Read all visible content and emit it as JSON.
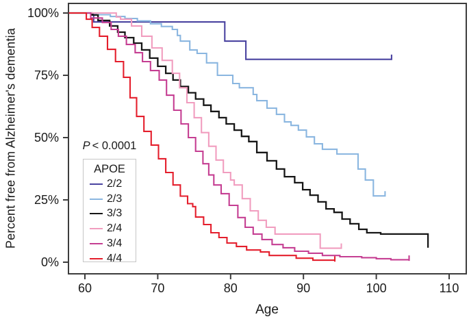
{
  "chart_data": {
    "type": "line",
    "subtype": "kaplan-meier-step",
    "title": "",
    "xlabel": "Age",
    "ylabel": "Percent free from Alzheimer's dementia",
    "p_label": {
      "symbol": "P",
      "value": "< 0.0001"
    },
    "legend_title": "APOE",
    "legend_position": "lower-left",
    "grid": false,
    "x_ticks": [
      60,
      70,
      80,
      90,
      100,
      110
    ],
    "y_ticks": [
      {
        "label": "100%",
        "value": 100
      },
      {
        "label": "75%",
        "value": 75
      },
      {
        "label": "50%",
        "value": 50
      },
      {
        "label": "25%",
        "value": 25
      },
      {
        "label": "0%",
        "value": 0
      }
    ],
    "xlim": [
      57.6,
      112.4
    ],
    "ylim": [
      -5,
      104
    ],
    "series": [
      {
        "name": "2/2",
        "color": "#4a43a0",
        "censor_tick_at_end": true,
        "points": [
          [
            57.8,
            100
          ],
          [
            61.2,
            96.4
          ],
          [
            79.2,
            88.7
          ],
          [
            82.1,
            81.4
          ],
          [
            102.1,
            81.4
          ]
        ]
      },
      {
        "name": "2/3",
        "color": "#8ab6e0",
        "censor_tick_at_end": true,
        "points": [
          [
            57.8,
            100
          ],
          [
            61.5,
            99.3
          ],
          [
            63.5,
            98.6
          ],
          [
            65.5,
            97.8
          ],
          [
            67.2,
            96.8
          ],
          [
            69.0,
            95.7
          ],
          [
            70.5,
            94.6
          ],
          [
            72.0,
            93.4
          ],
          [
            72.7,
            91.0
          ],
          [
            73.1,
            88.7
          ],
          [
            74.4,
            85.2
          ],
          [
            75.4,
            83.8
          ],
          [
            76.7,
            80.0
          ],
          [
            78.2,
            75.0
          ],
          [
            80.3,
            71.7
          ],
          [
            81.2,
            70.0
          ],
          [
            83.1,
            67.3
          ],
          [
            83.6,
            64.8
          ],
          [
            85.0,
            61.8
          ],
          [
            86.3,
            59.3
          ],
          [
            87.4,
            56.3
          ],
          [
            88.3,
            54.9
          ],
          [
            89.3,
            53.0
          ],
          [
            90.4,
            50.3
          ],
          [
            91.5,
            47.5
          ],
          [
            92.6,
            45.3
          ],
          [
            94.6,
            43.4
          ],
          [
            97.5,
            37.4
          ],
          [
            98.5,
            33.0
          ],
          [
            99.6,
            26.6
          ],
          [
            101.2,
            26.6
          ]
        ]
      },
      {
        "name": "3/3",
        "color": "#161616",
        "censor_tick_at_end": false,
        "points": [
          [
            57.8,
            100
          ],
          [
            61.0,
            99.2
          ],
          [
            61.8,
            97.0
          ],
          [
            63.4,
            94.8
          ],
          [
            64.5,
            92.3
          ],
          [
            65.5,
            90.1
          ],
          [
            66.7,
            87.9
          ],
          [
            67.8,
            85.2
          ],
          [
            68.9,
            81.9
          ],
          [
            70.0,
            78.6
          ],
          [
            71.1,
            75.8
          ],
          [
            72.1,
            73.1
          ],
          [
            73.1,
            70.5
          ],
          [
            74.2,
            68.0
          ],
          [
            75.2,
            65.5
          ],
          [
            76.3,
            63.0
          ],
          [
            77.3,
            60.5
          ],
          [
            78.4,
            58.0
          ],
          [
            79.4,
            55.5
          ],
          [
            80.5,
            53.0
          ],
          [
            81.5,
            50.5
          ],
          [
            82.5,
            48.4
          ],
          [
            83.6,
            44.0
          ],
          [
            85.0,
            40.7
          ],
          [
            86.3,
            37.4
          ],
          [
            87.4,
            34.3
          ],
          [
            88.8,
            31.9
          ],
          [
            89.9,
            29.1
          ],
          [
            90.9,
            26.9
          ],
          [
            92.0,
            24.2
          ],
          [
            93.1,
            21.4
          ],
          [
            94.2,
            20.0
          ],
          [
            95.3,
            17.3
          ],
          [
            96.4,
            15.4
          ],
          [
            97.6,
            13.2
          ],
          [
            98.7,
            11.8
          ],
          [
            100.6,
            11.3
          ],
          [
            107.1,
            5.8
          ]
        ]
      },
      {
        "name": "2/4",
        "color": "#f19dbf",
        "censor_tick_at_end": true,
        "points": [
          [
            57.8,
            100
          ],
          [
            64.3,
            98.4
          ],
          [
            64.9,
            97.5
          ],
          [
            66.4,
            94.8
          ],
          [
            67.8,
            90.7
          ],
          [
            69.2,
            86.0
          ],
          [
            70.6,
            81.0
          ],
          [
            72.0,
            75.8
          ],
          [
            73.0,
            70.0
          ],
          [
            74.0,
            64.0
          ],
          [
            75.0,
            58.0
          ],
          [
            76.0,
            52.0
          ],
          [
            77.0,
            46.5
          ],
          [
            78.0,
            41.0
          ],
          [
            79.0,
            36.0
          ],
          [
            80.0,
            33.0
          ],
          [
            80.5,
            31.0
          ],
          [
            81.6,
            25.5
          ],
          [
            82.7,
            20.6
          ],
          [
            83.8,
            16.8
          ],
          [
            84.9,
            14.0
          ],
          [
            86.1,
            11.3
          ],
          [
            92.3,
            5.6
          ],
          [
            95.2,
            5.6
          ]
        ]
      },
      {
        "name": "3/4",
        "color": "#c53e92",
        "censor_tick_at_end": true,
        "points": [
          [
            57.8,
            100
          ],
          [
            60.8,
            98.0
          ],
          [
            62.4,
            96.2
          ],
          [
            63.6,
            93.4
          ],
          [
            64.6,
            90.7
          ],
          [
            65.7,
            87.4
          ],
          [
            66.9,
            84.1
          ],
          [
            67.9,
            80.5
          ],
          [
            69.0,
            76.9
          ],
          [
            70.2,
            73.1
          ],
          [
            71.2,
            67.0
          ],
          [
            72.2,
            61.0
          ],
          [
            73.2,
            55.5
          ],
          [
            74.2,
            50.0
          ],
          [
            75.2,
            44.5
          ],
          [
            76.2,
            39.5
          ],
          [
            77.0,
            35.0
          ],
          [
            77.7,
            31.0
          ],
          [
            78.7,
            27.5
          ],
          [
            79.8,
            22.8
          ],
          [
            81.0,
            17.9
          ],
          [
            82.0,
            14.0
          ],
          [
            83.1,
            11.3
          ],
          [
            84.3,
            9.1
          ],
          [
            85.7,
            7.1
          ],
          [
            87.2,
            5.8
          ],
          [
            88.8,
            4.4
          ],
          [
            90.7,
            3.6
          ],
          [
            92.6,
            2.7
          ],
          [
            95.0,
            2.2
          ],
          [
            98.0,
            1.8
          ],
          [
            100.0,
            1.4
          ],
          [
            102.0,
            1.0
          ],
          [
            104.5,
            0.8
          ]
        ]
      },
      {
        "name": "4/4",
        "color": "#e41e2c",
        "censor_tick_at_end": true,
        "points": [
          [
            57.8,
            100
          ],
          [
            60.2,
            97.5
          ],
          [
            61.0,
            94.2
          ],
          [
            62.0,
            90.7
          ],
          [
            63.1,
            85.4
          ],
          [
            64.2,
            80.5
          ],
          [
            65.3,
            74.2
          ],
          [
            66.2,
            66.0
          ],
          [
            67.1,
            58.5
          ],
          [
            68.1,
            52.5
          ],
          [
            69.1,
            47.0
          ],
          [
            70.1,
            41.5
          ],
          [
            71.1,
            36.0
          ],
          [
            72.1,
            31.0
          ],
          [
            73.1,
            26.5
          ],
          [
            74.1,
            23.5
          ],
          [
            74.8,
            22.3
          ],
          [
            75.2,
            18.1
          ],
          [
            76.3,
            15.1
          ],
          [
            77.3,
            11.8
          ],
          [
            78.4,
            9.9
          ],
          [
            79.5,
            7.7
          ],
          [
            80.8,
            6.3
          ],
          [
            82.2,
            4.9
          ],
          [
            84.1,
            4.1
          ],
          [
            85.3,
            2.7
          ],
          [
            89.0,
            1.6
          ],
          [
            91.3,
            0.8
          ],
          [
            94.3,
            0.5
          ]
        ]
      }
    ],
    "colors": {
      "axis": "#3c3c3c",
      "text": "#1a1a1a",
      "background": "#ffffff",
      "legend_border": "#c6c6c6"
    }
  }
}
